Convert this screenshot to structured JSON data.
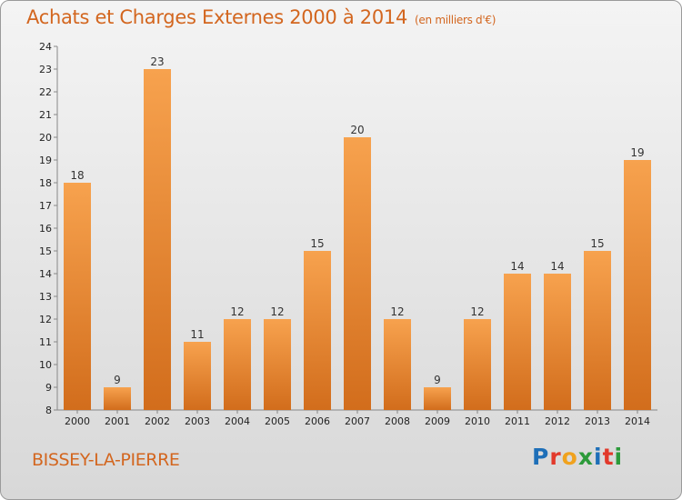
{
  "header": {
    "title": "Achats et Charges Externes 2000 à 2014",
    "unit": "(en milliers d'€)"
  },
  "footer": {
    "commune": "BISSEY-LA-PIERRE",
    "logo": "Proxiti",
    "logo_colors": [
      "#1e6fb8",
      "#e2392b",
      "#f0a21e",
      "#2c9a3a",
      "#1e6fb8",
      "#e2392b",
      "#2c9a3a"
    ]
  },
  "colors": {
    "bar_light": "#f7a24e",
    "bar_dark": "#d26d1c",
    "accent": "#d3661f"
  },
  "chart_data": {
    "type": "bar",
    "categories": [
      "2000",
      "2001",
      "2002",
      "2003",
      "2004",
      "2005",
      "2006",
      "2007",
      "2008",
      "2009",
      "2010",
      "2011",
      "2012",
      "2013",
      "2014"
    ],
    "values": [
      18,
      9,
      23,
      11,
      12,
      12,
      15,
      20,
      12,
      9,
      12,
      14,
      14,
      15,
      19
    ],
    "title": "Achats et Charges Externes 2000 à 2014",
    "ylim": [
      8,
      24
    ],
    "yticks": [
      8,
      9,
      10,
      11,
      12,
      13,
      14,
      15,
      16,
      17,
      18,
      19,
      20,
      21,
      22,
      23,
      24
    ],
    "grid": false,
    "data_labels": true
  }
}
